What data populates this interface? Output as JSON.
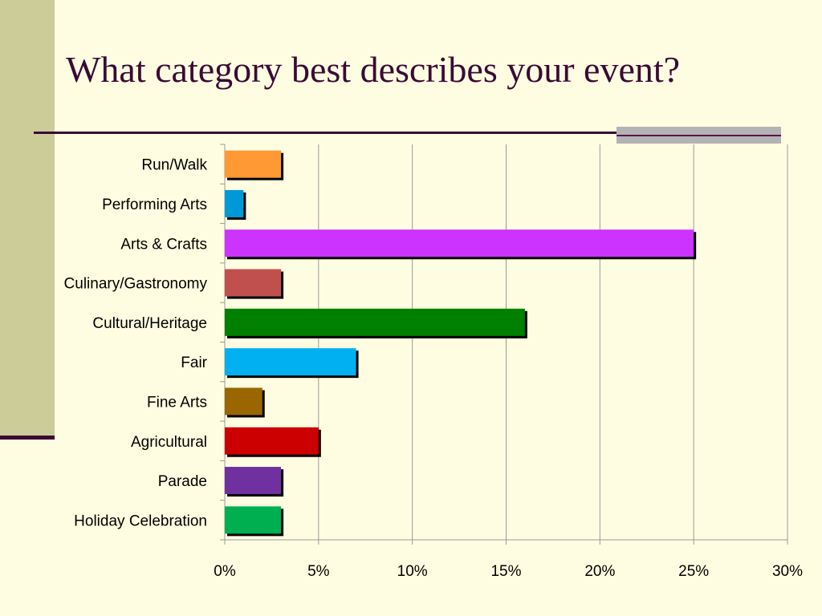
{
  "slide": {
    "title": "What category best describes your event?"
  },
  "colors": {
    "background": "#FFFDE1",
    "side_band": "#CCCC99",
    "title_text": "#3A0A35",
    "accent_bar": "#B3B3B3",
    "gridline": "#999999"
  },
  "chart_data": {
    "type": "bar",
    "orientation": "horizontal",
    "title": "",
    "xlabel": "",
    "ylabel": "",
    "xlim": [
      0,
      30
    ],
    "x_tick_values": [
      0,
      5,
      10,
      15,
      20,
      25,
      30
    ],
    "x_tick_labels": [
      "0%",
      "5%",
      "10%",
      "15%",
      "20%",
      "25%",
      "30%"
    ],
    "grid": "vertical gridlines on",
    "legend": "none",
    "categories": [
      "Run/Walk",
      "Performing Arts",
      "Arts & Crafts",
      "Culinary/Gastronomy",
      "Cultural/Heritage",
      "Fair",
      "Fine Arts",
      "Agricultural",
      "Parade",
      "Holiday Celebration"
    ],
    "values": [
      3,
      1,
      25,
      3,
      16,
      7,
      2,
      5,
      3,
      3
    ],
    "bar_colors": [
      "#FF9933",
      "#0099D8",
      "#CC33FF",
      "#C0504D",
      "#008000",
      "#00B0F0",
      "#996600",
      "#CC0000",
      "#7030A0",
      "#00B050"
    ]
  }
}
